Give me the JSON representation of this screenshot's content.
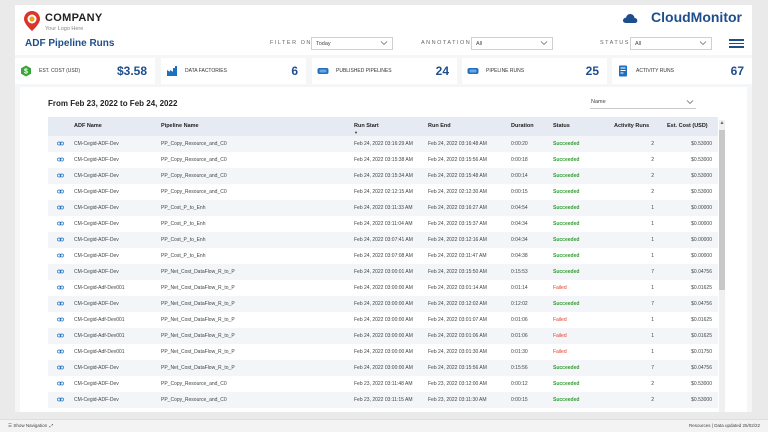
{
  "brand": {
    "company": "COMPANY",
    "tagline": "Your Logo Here",
    "product": "CloudMonitor"
  },
  "page_title": "ADF Pipeline Runs",
  "filters": [
    {
      "label": "FILTER ON",
      "value": "Today"
    },
    {
      "label": "ANNOTATION",
      "value": "All"
    },
    {
      "label": "STATUS",
      "value": "All"
    }
  ],
  "kpis": [
    {
      "label": "EST. COST (USD)",
      "value": "$3.58",
      "icon": "dollar-icon",
      "color": "#3aa63a"
    },
    {
      "label": "DATA FACTORIES",
      "value": "6",
      "icon": "factory-icon",
      "color": "#1f6fbf"
    },
    {
      "label": "PUBLISHED PIPELINES",
      "value": "24",
      "icon": "pipeline-icon",
      "color": "#1f6fbf"
    },
    {
      "label": "PIPELINE RUNS",
      "value": "25",
      "icon": "pipeline-runs-icon",
      "color": "#1f6fbf"
    },
    {
      "label": "ACTIVITY RUNS",
      "value": "67",
      "icon": "activity-icon",
      "color": "#1f6fbf"
    }
  ],
  "date_range": "From Feb 23, 2022 to Feb 24, 2022",
  "sort_by": "Name",
  "columns": [
    "ADF Name",
    "Pipeline Name",
    "Run Start",
    "Run End",
    "Duration",
    "Status",
    "Activity Runs",
    "Est. Cost (USD)"
  ],
  "rows": [
    [
      "CM-Cegid-ADF-Dev",
      "PP_Copy_Resource_and_C0",
      "Feb 24, 2022 03:16:29 AM",
      "Feb 24, 2022 03:16:48 AM",
      "0:00:20",
      "Succeeded",
      "2",
      "$0.53000"
    ],
    [
      "CM-Cegid-ADF-Dev",
      "PP_Copy_Resource_and_C0",
      "Feb 24, 2022 03:15:38 AM",
      "Feb 24, 2022 03:15:56 AM",
      "0:00:18",
      "Succeeded",
      "2",
      "$0.53000"
    ],
    [
      "CM-Cegid-ADF-Dev",
      "PP_Copy_Resource_and_C0",
      "Feb 24, 2022 03:15:34 AM",
      "Feb 24, 2022 03:15:48 AM",
      "0:00:14",
      "Succeeded",
      "2",
      "$0.53000"
    ],
    [
      "CM-Cegid-ADF-Dev",
      "PP_Copy_Resource_and_C0",
      "Feb 24, 2022 02:12:15 AM",
      "Feb 24, 2022 02:12:30 AM",
      "0:00:15",
      "Succeeded",
      "2",
      "$0.53000"
    ],
    [
      "CM-Cegid-ADF-Dev",
      "PP_Cost_P_to_Enh",
      "Feb 24, 2022 03:11:33 AM",
      "Feb 24, 2022 03:16:27 AM",
      "0:04:54",
      "Succeeded",
      "1",
      "$0.00000"
    ],
    [
      "CM-Cegid-ADF-Dev",
      "PP_Cost_P_to_Enh",
      "Feb 24, 2022 03:11:04 AM",
      "Feb 24, 2022 03:15:37 AM",
      "0:04:34",
      "Succeeded",
      "1",
      "$0.00000"
    ],
    [
      "CM-Cegid-ADF-Dev",
      "PP_Cost_P_to_Enh",
      "Feb 24, 2022 03:07:41 AM",
      "Feb 24, 2022 03:12:16 AM",
      "0:04:34",
      "Succeeded",
      "1",
      "$0.00000"
    ],
    [
      "CM-Cegid-ADF-Dev",
      "PP_Cost_P_to_Enh",
      "Feb 24, 2022 03:07:08 AM",
      "Feb 24, 2022 03:11:47 AM",
      "0:04:38",
      "Succeeded",
      "1",
      "$0.00000"
    ],
    [
      "CM-Cegid-ADF-Dev",
      "PP_Net_Cost_DataFlow_R_to_P",
      "Feb 24, 2022 03:00:01 AM",
      "Feb 24, 2022 03:15:50 AM",
      "0:15:53",
      "Succeeded",
      "7",
      "$0.04756"
    ],
    [
      "CM-Cegid-Adf-Dev001",
      "PP_Net_Cost_DataFlow_R_to_P",
      "Feb 24, 2022 03:00:00 AM",
      "Feb 24, 2022 03:01:14 AM",
      "0:01:14",
      "Failed",
      "1",
      "$0.01625"
    ],
    [
      "CM-Cegid-ADF-Dev",
      "PP_Net_Cost_DataFlow_R_to_P",
      "Feb 24, 2022 03:00:00 AM",
      "Feb 24, 2022 03:12:02 AM",
      "0:12:02",
      "Succeeded",
      "7",
      "$0.04756"
    ],
    [
      "CM-Cegid-Adf-Dev001",
      "PP_Net_Cost_DataFlow_R_to_P",
      "Feb 24, 2022 03:00:00 AM",
      "Feb 24, 2022 03:01:07 AM",
      "0:01:06",
      "Failed",
      "1",
      "$0.01625"
    ],
    [
      "CM-Cegid-Adf-Dev001",
      "PP_Net_Cost_DataFlow_R_to_P",
      "Feb 24, 2022 03:00:00 AM",
      "Feb 24, 2022 03:01:06 AM",
      "0:01:06",
      "Failed",
      "1",
      "$0.01625"
    ],
    [
      "CM-Cegid-Adf-Dev001",
      "PP_Net_Cost_DataFlow_R_to_P",
      "Feb 24, 2022 03:00:00 AM",
      "Feb 24, 2022 03:01:30 AM",
      "0:01:30",
      "Failed",
      "1",
      "$0.01750"
    ],
    [
      "CM-Cegid-ADF-Dev",
      "PP_Net_Cost_DataFlow_R_to_P",
      "Feb 24, 2022 03:00:00 AM",
      "Feb 24, 2022 03:15:56 AM",
      "0:15:56",
      "Succeeded",
      "7",
      "$0.04756"
    ],
    [
      "CM-Cegid-ADF-Dev",
      "PP_Copy_Resource_and_C0",
      "Feb 23, 2022 03:11:48 AM",
      "Feb 23, 2022 03:12:00 AM",
      "0:00:12",
      "Succeeded",
      "2",
      "$0.53000"
    ],
    [
      "CM-Cegid-ADF-Dev",
      "PP_Copy_Resource_and_C0",
      "Feb 23, 2022 03:11:15 AM",
      "Feb 23, 2022 03:11:30 AM",
      "0:00:15",
      "Succeeded",
      "2",
      "$0.53000"
    ]
  ],
  "status_colors": {
    "Succeeded": "#2f9e2f",
    "Failed": "#e0402b"
  },
  "statusbar": {
    "show_navigation": "Show Navigation",
    "resources": "Resources",
    "data_updated": "Data updated 25/02/22"
  }
}
